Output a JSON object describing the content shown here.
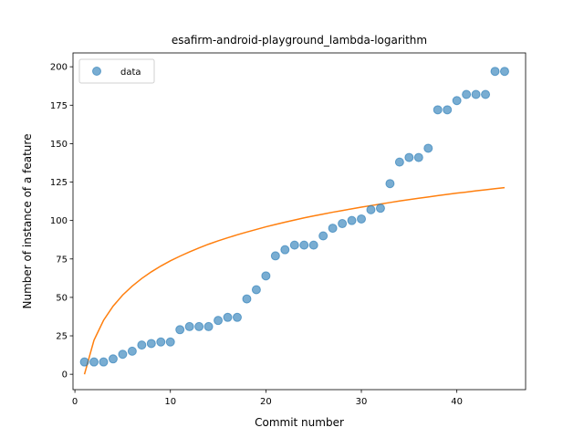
{
  "chart_data": {
    "type": "scatter",
    "title": "esafirm-android-playground_lambda-logarithm",
    "xlabel": "Commit number",
    "ylabel": "Number of instance of a feature",
    "xlim": [
      -0.2,
      47.2
    ],
    "ylim": [
      -10,
      209
    ],
    "xticks": [
      0,
      10,
      20,
      30,
      40
    ],
    "yticks": [
      0,
      25,
      50,
      75,
      100,
      125,
      150,
      175,
      200
    ],
    "legend": {
      "position": "top-left",
      "entries": [
        "data"
      ]
    },
    "series": [
      {
        "name": "data",
        "kind": "scatter",
        "color": "#1f77b4",
        "x": [
          1,
          2,
          3,
          4,
          5,
          6,
          7,
          8,
          9,
          10,
          11,
          12,
          13,
          14,
          15,
          16,
          17,
          18,
          19,
          20,
          21,
          22,
          23,
          24,
          25,
          26,
          27,
          28,
          29,
          30,
          31,
          32,
          33,
          34,
          35,
          36,
          37,
          38,
          39,
          40,
          41,
          42,
          43,
          44,
          45
        ],
        "y": [
          8,
          8,
          8,
          10,
          13,
          15,
          19,
          20,
          21,
          21,
          29,
          31,
          31,
          31,
          35,
          37,
          37,
          49,
          55,
          64,
          77,
          81,
          84,
          84,
          84,
          90,
          95,
          98,
          100,
          101,
          107,
          108,
          124,
          138,
          141,
          141,
          147,
          172,
          172,
          178,
          182,
          182,
          182,
          197,
          197
        ]
      },
      {
        "kind": "line",
        "color": "#ff7f0e",
        "x": [
          1,
          2,
          3,
          4,
          5,
          6,
          7,
          8,
          9,
          10,
          11,
          12,
          13,
          14,
          15,
          16,
          17,
          18,
          19,
          20,
          21,
          22,
          23,
          24,
          25,
          26,
          27,
          28,
          29,
          30,
          31,
          32,
          33,
          34,
          35,
          36,
          37,
          38,
          39,
          40,
          41,
          42,
          43,
          44,
          45
        ],
        "y": [
          0,
          22.2,
          35.1,
          44.3,
          51.5,
          57.3,
          62.3,
          66.6,
          70.4,
          73.8,
          76.8,
          79.6,
          82.2,
          84.6,
          86.8,
          88.8,
          90.7,
          92.5,
          94.2,
          95.9,
          97.4,
          98.9,
          100.3,
          101.7,
          103.0,
          104.2,
          105.4,
          106.5,
          107.6,
          108.7,
          109.7,
          110.7,
          111.7,
          112.7,
          113.6,
          114.5,
          115.3,
          116.2,
          117.0,
          117.8,
          118.5,
          119.3,
          120.0,
          120.7,
          121.4
        ]
      }
    ]
  }
}
